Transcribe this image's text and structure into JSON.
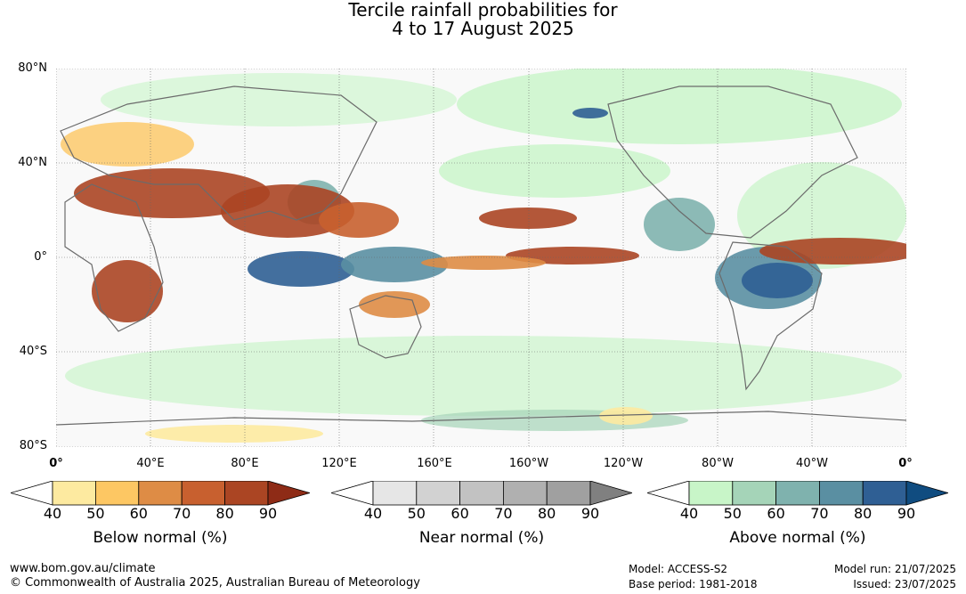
{
  "title": {
    "line1": "Tercile rainfall probabilities for",
    "line2": "4 to 17 August 2025"
  },
  "map": {
    "lat_labels": [
      "80°N",
      "40°N",
      "0°",
      "40°S",
      "80°S"
    ],
    "lon_labels": [
      "0°",
      "40°E",
      "80°E",
      "120°E",
      "160°E",
      "160°W",
      "120°W",
      "80°W",
      "40°W",
      "0°"
    ]
  },
  "legends": [
    {
      "title": "Below normal (%)",
      "ticks": [
        "40",
        "50",
        "60",
        "70",
        "80",
        "90"
      ],
      "colors": [
        "#ffffff",
        "#fdeaa0",
        "#fdc763",
        "#de8c45",
        "#c8602f",
        "#ab4523",
        "#8e2b16"
      ]
    },
    {
      "title": "Near normal (%)",
      "ticks": [
        "40",
        "50",
        "60",
        "70",
        "80",
        "90"
      ],
      "colors": [
        "#ffffff",
        "#e6e6e6",
        "#d2d2d2",
        "#c2c2c2",
        "#b0b0b0",
        "#a0a0a0",
        "#808080"
      ]
    },
    {
      "title": "Above normal (%)",
      "ticks": [
        "40",
        "50",
        "60",
        "70",
        "80",
        "90"
      ],
      "colors": [
        "#ffffff",
        "#c8f5c8",
        "#a5d4b8",
        "#7fb2ae",
        "#5a8fa2",
        "#2f5f94",
        "#104c80"
      ]
    }
  ],
  "footer": {
    "url": "www.bom.gov.au/climate",
    "copyright": "© Commonwealth of Australia 2025, Australian Bureau of Meteorology",
    "model": "Model: ACCESS-S2",
    "base_period": "Base period: 1981-2018",
    "model_run": "Model run: 21/07/2025",
    "issued": "Issued: 23/07/2025"
  }
}
